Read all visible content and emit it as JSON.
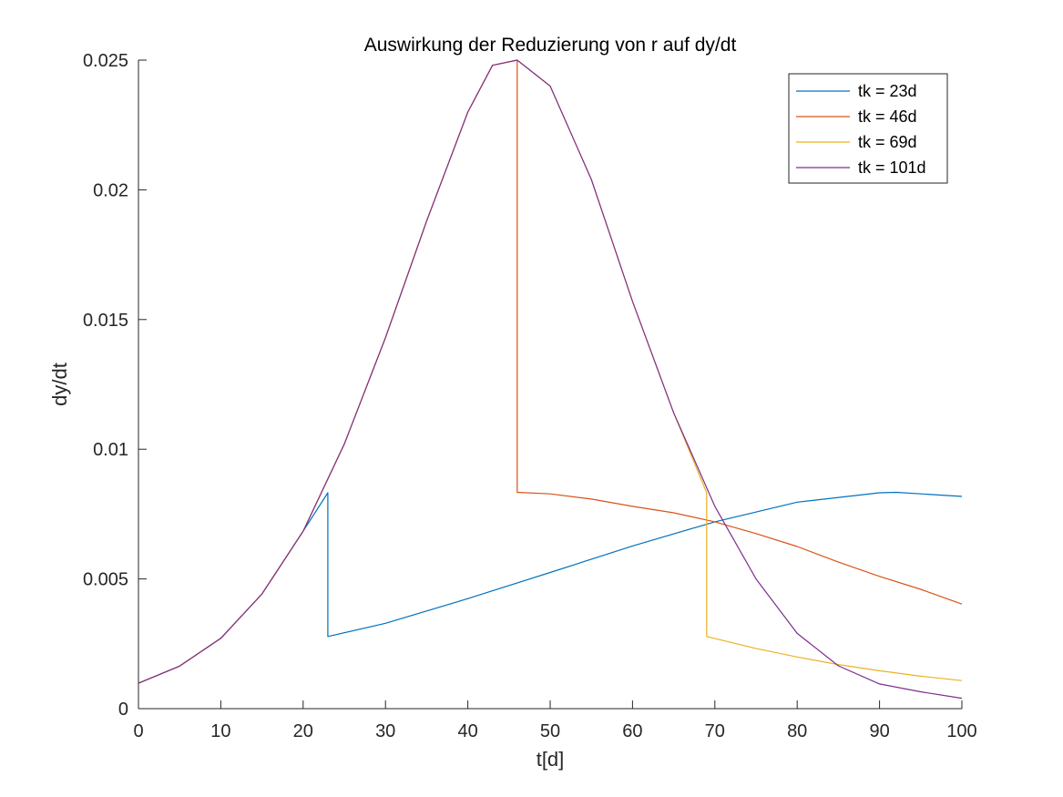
{
  "chart_data": {
    "type": "line",
    "title": "Auswirkung der Reduzierung von r auf dy/dt",
    "xlabel": "t[d]",
    "ylabel": "dy/dt",
    "xlim": [
      0,
      100
    ],
    "ylim": [
      0,
      0.025
    ],
    "xticks": [
      0,
      10,
      20,
      30,
      40,
      50,
      60,
      70,
      80,
      90,
      100
    ],
    "xtick_labels": [
      "0",
      "10",
      "20",
      "30",
      "40",
      "50",
      "60",
      "70",
      "80",
      "90",
      "100"
    ],
    "yticks": [
      0,
      0.005,
      0.01,
      0.015,
      0.02,
      0.025
    ],
    "ytick_labels": [
      "0",
      "0.005",
      "0.01",
      "0.015",
      "0.02",
      "0.025"
    ],
    "grid": false,
    "legend_position": "top-right",
    "series": [
      {
        "name": "tk = 23d",
        "color": "#0072BD",
        "x": [
          0,
          5,
          10,
          15,
          20,
          23,
          23,
          30,
          40,
          50,
          60,
          70,
          80,
          90,
          92,
          100
        ],
        "y": [
          0.00098,
          0.00164,
          0.00271,
          0.00442,
          0.00684,
          0.00832,
          0.00278,
          0.00329,
          0.00424,
          0.00525,
          0.00627,
          0.0072,
          0.00796,
          0.00832,
          0.00834,
          0.00818
        ]
      },
      {
        "name": "tk = 46d",
        "color": "#D95319",
        "x": [
          0,
          5,
          10,
          15,
          20,
          25,
          30,
          35,
          40,
          43,
          46,
          46,
          50,
          55,
          60,
          65,
          70,
          75,
          80,
          85,
          90,
          95,
          100
        ],
        "y": [
          0.00098,
          0.00164,
          0.00271,
          0.00442,
          0.00684,
          0.0102,
          0.0143,
          0.0188,
          0.023,
          0.0248,
          0.025,
          0.00834,
          0.00828,
          0.00808,
          0.0078,
          0.00755,
          0.0072,
          0.00675,
          0.00625,
          0.00565,
          0.0051,
          0.0046,
          0.00403
        ]
      },
      {
        "name": "tk = 69d",
        "color": "#EDB120",
        "x": [
          0,
          5,
          10,
          15,
          20,
          25,
          30,
          35,
          40,
          43,
          46,
          50,
          55,
          60,
          65,
          69,
          69,
          75,
          80,
          85,
          90,
          95,
          100
        ],
        "y": [
          0.00098,
          0.00164,
          0.00271,
          0.00442,
          0.00684,
          0.0102,
          0.0143,
          0.0188,
          0.023,
          0.0248,
          0.025,
          0.024,
          0.0204,
          0.0157,
          0.0114,
          0.00832,
          0.00278,
          0.00232,
          0.00199,
          0.0017,
          0.00146,
          0.00125,
          0.00108
        ]
      },
      {
        "name": "tk = 101d",
        "color": "#7E2F8E",
        "x": [
          0,
          5,
          10,
          15,
          20,
          25,
          30,
          35,
          40,
          43,
          46,
          50,
          55,
          60,
          65,
          70,
          75,
          80,
          85,
          90,
          95,
          100
        ],
        "y": [
          0.00098,
          0.00164,
          0.00271,
          0.00442,
          0.00684,
          0.0102,
          0.0143,
          0.0188,
          0.023,
          0.0248,
          0.025,
          0.024,
          0.0204,
          0.0157,
          0.0114,
          0.0078,
          0.005,
          0.0029,
          0.00165,
          0.00095,
          0.00065,
          0.0004
        ]
      }
    ]
  }
}
